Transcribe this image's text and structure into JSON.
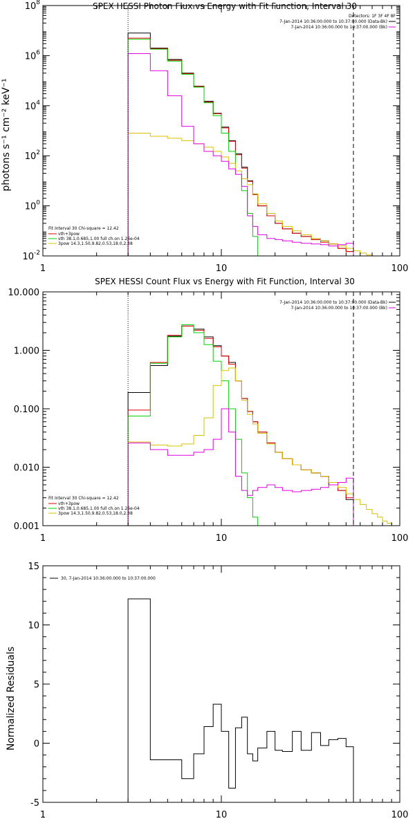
{
  "chart_data": [
    {
      "id": "photon",
      "type": "line",
      "title": "SPEX HESSI Photon Flux vs Energy with Fit Function, Interval 30",
      "ylabel": "photons s⁻¹ cm⁻² keV⁻¹",
      "xlabel": "",
      "xscale": "log",
      "yscale": "log",
      "xlim": [
        1,
        100
      ],
      "ylim": [
        0.01,
        100000000
      ],
      "xticks": [
        1,
        10,
        100
      ],
      "xtick_labels": [
        "1",
        "10",
        "100"
      ],
      "yticks": [
        0.01,
        1,
        100,
        10000,
        1000000,
        100000000
      ],
      "ytick_labels_base": [
        "10",
        "10",
        "10",
        "10",
        "10",
        "10"
      ],
      "ytick_labels_exp": [
        "-2",
        "0",
        "2",
        "4",
        "6",
        "8"
      ],
      "vlines": [
        {
          "x": 3.0,
          "style": "dotted"
        },
        {
          "x": 55,
          "style": "dashed"
        }
      ],
      "legend_right": {
        "header": "Detectors: 1F 3F 4F 8F",
        "entries": [
          {
            "text": "7-Jan-2014 10:36:00.000 to 10:37:00.000 (Data-Bk)",
            "color": "#000000"
          },
          {
            "text": "7-Jan-2014 10:36:00.000 to 10:37:00.000 (Bk)",
            "color": "#e000e0"
          }
        ]
      },
      "legend_left": {
        "header": "Fit Interval 30   Chi-square = 12.42",
        "entries": [
          {
            "text": "vth+3pow",
            "color": "#e00000"
          },
          {
            "text": "vth 38.1,0.685,1.00  full ch.on 1.26e-04",
            "color": "#00d000"
          },
          {
            "text": "3pow 14.3,1.50,9.82,0.53,18.0,2.38",
            "color": "#d8c000"
          }
        ]
      },
      "series": [
        {
          "name": "Data-Bk",
          "color": "#000000",
          "edges": [
            3,
            4,
            5,
            6,
            7,
            8,
            9,
            10,
            11,
            12,
            13,
            14,
            15,
            16,
            18,
            20,
            22,
            25,
            28,
            32,
            36,
            40,
            45,
            50,
            55
          ],
          "values": [
            8000000,
            2000000,
            700000,
            200000,
            60000,
            15000,
            5000,
            1400,
            400,
            120,
            35,
            10,
            3,
            1,
            0.4,
            0.2,
            0.12,
            0.08,
            0.06,
            0.045,
            0.04,
            0.03,
            0.02,
            0.015
          ]
        },
        {
          "name": "vth+3pow",
          "color": "#e00000",
          "edges": [
            3,
            4,
            5,
            6,
            7,
            8,
            9,
            10,
            11,
            12,
            13,
            14,
            15,
            16,
            18,
            20,
            22,
            25,
            28,
            32,
            36,
            40,
            45,
            50,
            55
          ],
          "values": [
            5000000,
            1900000,
            650000,
            190000,
            58000,
            14000,
            4800,
            1300,
            380,
            110,
            32,
            9.5,
            2.8,
            1,
            0.4,
            0.2,
            0.12,
            0.08,
            0.06,
            0.045,
            0.035,
            0.03,
            0.02,
            0.015
          ]
        },
        {
          "name": "vth",
          "color": "#00d000",
          "edges": [
            3,
            4,
            5,
            6,
            7,
            8,
            9,
            10,
            11,
            12,
            13,
            14,
            15,
            16,
            17
          ],
          "values": [
            4500000,
            1800000,
            600000,
            180000,
            55000,
            13000,
            4000,
            800,
            150,
            25,
            4,
            0.5,
            0.06,
            0.01
          ]
        },
        {
          "name": "3pow",
          "color": "#d8c000",
          "edges": [
            3,
            4,
            5,
            6,
            7,
            8,
            9,
            10,
            11,
            12,
            13,
            14,
            15,
            16,
            18,
            20,
            22,
            25,
            28,
            32,
            36,
            40,
            45,
            50,
            55,
            60,
            65,
            70,
            75
          ],
          "values": [
            800,
            600,
            500,
            400,
            300,
            220,
            150,
            90,
            50,
            25,
            12,
            7,
            3,
            1.2,
            0.5,
            0.25,
            0.15,
            0.1,
            0.07,
            0.05,
            0.04,
            0.03,
            0.025,
            0.02,
            0.016,
            0.013,
            0.011,
            0.009
          ]
        },
        {
          "name": "Bk",
          "color": "#e000e0",
          "edges": [
            3,
            4,
            5,
            6,
            7,
            8,
            9,
            10,
            11,
            12,
            13,
            14,
            15,
            16,
            18,
            20,
            22,
            25,
            28,
            32,
            36,
            40,
            45,
            50,
            55
          ],
          "values": [
            1200000,
            250000,
            25000,
            1500,
            300,
            150,
            100,
            60,
            30,
            18,
            6,
            0.4,
            0.15,
            0.07,
            0.05,
            0.045,
            0.04,
            0.035,
            0.032,
            0.03,
            0.028,
            0.025,
            0.028,
            0.032
          ]
        }
      ]
    },
    {
      "id": "count",
      "type": "line",
      "title": "SPEX HESSI Count Flux vs Energy with Fit Function, Interval 30",
      "ylabel": "",
      "xlabel": "",
      "xscale": "log",
      "yscale": "log",
      "xlim": [
        1,
        100
      ],
      "ylim": [
        0.001,
        10
      ],
      "xticks": [
        1,
        10,
        100
      ],
      "xtick_labels": [
        "1",
        "10",
        "100"
      ],
      "yticks": [
        0.001,
        0.01,
        0.1,
        1,
        10
      ],
      "ytick_labels": [
        "0.001",
        "0.010",
        "0.100",
        "1.000",
        "10.000"
      ],
      "vlines": [
        {
          "x": 3.0,
          "style": "dotted"
        },
        {
          "x": 55,
          "style": "dashed"
        }
      ],
      "legend_right": {
        "entries": [
          {
            "text": "7-Jan-2014 10:36:00.000 to 10:37:00.000 (Data-Bk)",
            "color": "#000000"
          },
          {
            "text": "7-Jan-2014 10:36:00.000 to 10:37:00.000 (Bk)",
            "color": "#e000e0"
          }
        ]
      },
      "legend_left": {
        "header": "Fit Interval 30   Chi-square = 12.42",
        "entries": [
          {
            "text": "vth+3pow",
            "color": "#e00000"
          },
          {
            "text": "vth 38.1,0.685,1.00  full ch.on 1.26e-04",
            "color": "#00d000"
          },
          {
            "text": "3pow 14.3,1.50,9.82,0.53,18.0,2.38",
            "color": "#d8c000"
          }
        ]
      },
      "series": [
        {
          "name": "Data-Bk",
          "color": "#000000",
          "edges": [
            3,
            4,
            5,
            6,
            7,
            8,
            9,
            10,
            11,
            12,
            13,
            14,
            15,
            16,
            18,
            20,
            22,
            25,
            28,
            32,
            36,
            40,
            45,
            50,
            55
          ],
          "values": [
            0.19,
            0.55,
            1.75,
            2.6,
            2.3,
            1.7,
            1.2,
            0.8,
            0.62,
            0.3,
            0.15,
            0.09,
            0.06,
            0.04,
            0.026,
            0.018,
            0.014,
            0.011,
            0.009,
            0.008,
            0.007,
            0.005,
            0.004,
            0.0028
          ]
        },
        {
          "name": "vth+3pow",
          "color": "#e00000",
          "edges": [
            3,
            4,
            5,
            6,
            7,
            8,
            9,
            10,
            11,
            12,
            13,
            14,
            15,
            16,
            18,
            20,
            22,
            25,
            28,
            32,
            36,
            40,
            45,
            50,
            55
          ],
          "values": [
            0.095,
            0.62,
            1.8,
            2.6,
            2.2,
            1.6,
            1.15,
            0.8,
            0.58,
            0.3,
            0.15,
            0.09,
            0.06,
            0.04,
            0.026,
            0.018,
            0.014,
            0.011,
            0.009,
            0.008,
            0.007,
            0.005,
            0.004,
            0.003
          ]
        },
        {
          "name": "vth",
          "color": "#00d000",
          "edges": [
            3,
            4,
            5,
            6,
            7,
            8,
            9,
            10,
            11,
            12,
            13,
            14,
            15,
            16,
            17
          ],
          "values": [
            0.075,
            0.6,
            1.7,
            2.75,
            2.0,
            1.25,
            0.65,
            0.3,
            0.1,
            0.03,
            0.008,
            0.003,
            0.0014,
            0.0009
          ]
        },
        {
          "name": "3pow",
          "color": "#d8c000",
          "edges": [
            3,
            4,
            5,
            6,
            7,
            8,
            9,
            10,
            11,
            12,
            13,
            14,
            15,
            16,
            18,
            20,
            22,
            25,
            28,
            32,
            36,
            40,
            45,
            50,
            55,
            60,
            65,
            70,
            75,
            80,
            85,
            90,
            95,
            100
          ],
          "values": [
            0.027,
            0.024,
            0.023,
            0.025,
            0.035,
            0.07,
            0.25,
            0.45,
            0.5,
            0.3,
            0.14,
            0.08,
            0.055,
            0.038,
            0.025,
            0.018,
            0.014,
            0.011,
            0.009,
            0.008,
            0.007,
            0.0055,
            0.0045,
            0.0035,
            0.0028,
            0.0023,
            0.0019,
            0.0016,
            0.0014,
            0.0012,
            0.0011,
            0.001,
            0.0009
          ]
        },
        {
          "name": "Bk",
          "color": "#e000e0",
          "edges": [
            3,
            4,
            5,
            6,
            7,
            8,
            9,
            10,
            11,
            12,
            13,
            14,
            15,
            16,
            18,
            20,
            22,
            25,
            28,
            32,
            36,
            40,
            45,
            50,
            55
          ],
          "values": [
            0.026,
            0.02,
            0.016,
            0.016,
            0.018,
            0.02,
            0.03,
            0.1,
            0.04,
            0.007,
            0.004,
            0.0033,
            0.004,
            0.0045,
            0.005,
            0.0045,
            0.004,
            0.0038,
            0.004,
            0.0042,
            0.0045,
            0.005,
            0.0055,
            0.0065
          ]
        }
      ]
    },
    {
      "id": "resid",
      "type": "line",
      "title": "",
      "ylabel": "Normalized Residuals",
      "xlabel": "",
      "xscale": "log",
      "yscale": "linear",
      "xlim": [
        1,
        100
      ],
      "ylim": [
        -5,
        15
      ],
      "xticks": [
        1,
        10,
        100
      ],
      "xtick_labels": [
        "1",
        "10",
        "100"
      ],
      "yticks": [
        -5,
        0,
        5,
        10,
        15
      ],
      "ytick_labels": [
        "-5",
        "0",
        "5",
        "10",
        "15"
      ],
      "legend": {
        "text": "30,  7-Jan-2014 10:36:00.000 to 10:37:00.000",
        "color": "#000000"
      },
      "series": [
        {
          "name": "30",
          "color": "#000000",
          "edges": [
            3,
            4,
            5,
            6,
            7,
            8,
            9,
            10,
            11,
            12,
            13,
            14,
            15,
            16,
            18,
            20,
            22,
            25,
            28,
            32,
            36,
            40,
            45,
            50,
            55
          ],
          "values": [
            12.2,
            -1.4,
            -1.4,
            -3.0,
            -0.9,
            1.4,
            3.3,
            1.0,
            -3.8,
            1.3,
            2.2,
            -0.9,
            -1.5,
            -0.4,
            1.0,
            -0.6,
            -0.7,
            1.0,
            -0.6,
            0.9,
            -0.2,
            0.3,
            0.4,
            -0.3
          ]
        }
      ]
    }
  ]
}
